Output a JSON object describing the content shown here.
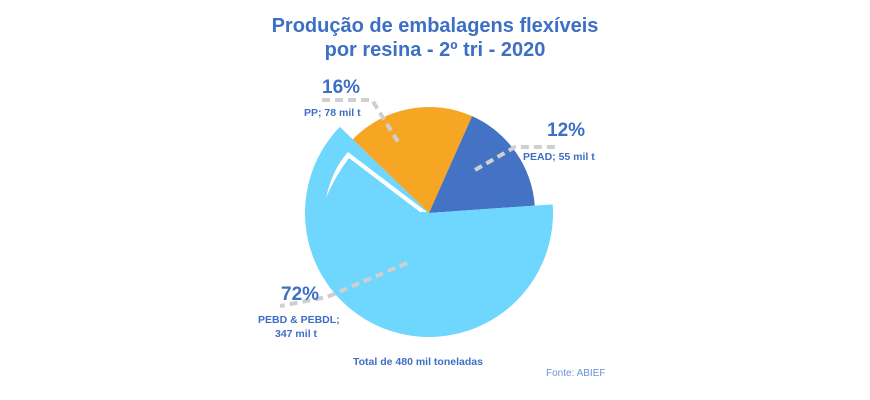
{
  "chart_data": {
    "type": "pie",
    "title": "Produção de embalagens flexíveis por resina - 2º tri - 2020",
    "title_lines": [
      "Produção de embalagens flexíveis",
      "por resina - 2º tri - 2020"
    ],
    "unit": "mil t",
    "slices": [
      {
        "name": "PEBD & PEBDL",
        "value": 347,
        "percent": 72,
        "percent_label": "72%",
        "label_lines": [
          "PEBD & PEBDL;",
          "347 mil t"
        ],
        "color": "#6fd6fd"
      },
      {
        "name": "PP",
        "value": 78,
        "percent": 16,
        "percent_label": "16%",
        "label_lines": [
          "PP; 78 mil t"
        ],
        "color": "#f6a623"
      },
      {
        "name": "PEAD",
        "value": 55,
        "percent": 12,
        "percent_label": "12%",
        "label_lines": [
          "PEAD; 55 mil t"
        ],
        "color": "#4472c4"
      }
    ],
    "total_label": "Total de 480 mil toneladas",
    "source": "Fonte: ABIEF"
  }
}
